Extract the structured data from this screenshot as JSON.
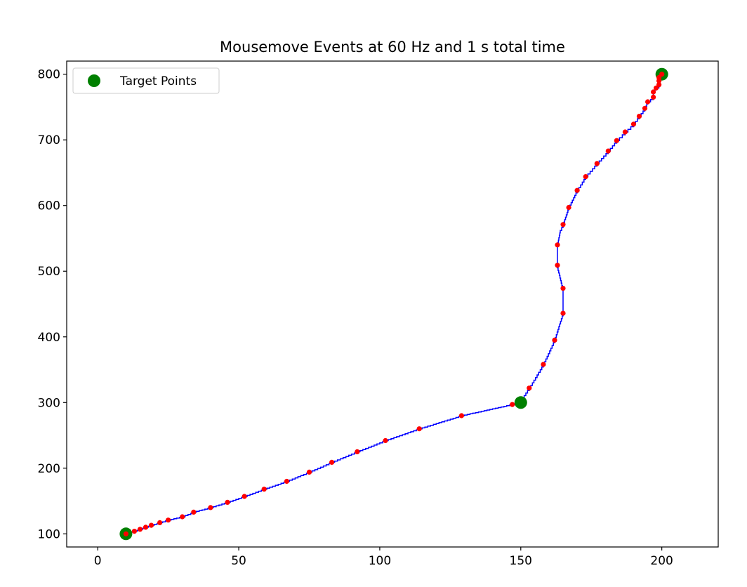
{
  "chart_data": {
    "type": "line",
    "title": "Mousemove Events at 60 Hz and 1 s total time",
    "xlabel": "",
    "ylabel": "",
    "xlim": [
      -11,
      220
    ],
    "ylim": [
      80,
      820
    ],
    "xticks": [
      0,
      50,
      100,
      150,
      200
    ],
    "yticks": [
      100,
      200,
      300,
      400,
      500,
      600,
      700,
      800
    ],
    "grid": false,
    "legend": {
      "position": "upper-left",
      "entries": [
        "Target Points"
      ]
    },
    "colors": {
      "path": "#0000ff",
      "events": "#ff0000",
      "targets": "#008000"
    },
    "series": [
      {
        "kind": "step-line",
        "points": [
          [
            10,
            100
          ],
          [
            13,
            104
          ],
          [
            15,
            107
          ],
          [
            17,
            110
          ],
          [
            19,
            113
          ],
          [
            22,
            117
          ],
          [
            25,
            121
          ],
          [
            30,
            126
          ],
          [
            34,
            133
          ],
          [
            40,
            140
          ],
          [
            46,
            148
          ],
          [
            52,
            157
          ],
          [
            59,
            168
          ],
          [
            67,
            180
          ],
          [
            75,
            194
          ],
          [
            83,
            209
          ],
          [
            92,
            225
          ],
          [
            102,
            242
          ],
          [
            114,
            260
          ],
          [
            129,
            280
          ],
          [
            147,
            297
          ],
          [
            150,
            303
          ],
          [
            153,
            322
          ],
          [
            158,
            358
          ],
          [
            162,
            395
          ],
          [
            165,
            436
          ],
          [
            165,
            474
          ],
          [
            163,
            509
          ],
          [
            163,
            540
          ],
          [
            164,
            562
          ],
          [
            165,
            571
          ],
          [
            167,
            597
          ],
          [
            170,
            623
          ],
          [
            173,
            644
          ],
          [
            177,
            664
          ],
          [
            181,
            683
          ],
          [
            184,
            699
          ],
          [
            187,
            712
          ],
          [
            190,
            724
          ],
          [
            192,
            736
          ],
          [
            194,
            748
          ],
          [
            195,
            758
          ],
          [
            197,
            765
          ],
          [
            197,
            773
          ],
          [
            198,
            779
          ],
          [
            199,
            784
          ],
          [
            199,
            790
          ],
          [
            199,
            795
          ],
          [
            200,
            800
          ]
        ]
      },
      {
        "kind": "events",
        "points": [
          [
            10,
            100
          ],
          [
            13,
            104
          ],
          [
            15,
            107
          ],
          [
            17,
            110
          ],
          [
            19,
            113
          ],
          [
            22,
            117
          ],
          [
            25,
            121
          ],
          [
            30,
            126
          ],
          [
            34,
            133
          ],
          [
            40,
            140
          ],
          [
            46,
            148
          ],
          [
            52,
            157
          ],
          [
            59,
            168
          ],
          [
            67,
            180
          ],
          [
            75,
            194
          ],
          [
            83,
            209
          ],
          [
            92,
            225
          ],
          [
            102,
            242
          ],
          [
            114,
            260
          ],
          [
            129,
            280
          ],
          [
            147,
            297
          ],
          [
            153,
            322
          ],
          [
            158,
            358
          ],
          [
            162,
            395
          ],
          [
            165,
            436
          ],
          [
            165,
            474
          ],
          [
            163,
            509
          ],
          [
            163,
            540
          ],
          [
            165,
            571
          ],
          [
            167,
            597
          ],
          [
            170,
            623
          ],
          [
            173,
            644
          ],
          [
            177,
            664
          ],
          [
            181,
            683
          ],
          [
            184,
            699
          ],
          [
            187,
            712
          ],
          [
            190,
            724
          ],
          [
            192,
            736
          ],
          [
            194,
            748
          ],
          [
            195,
            758
          ],
          [
            197,
            765
          ],
          [
            197,
            773
          ],
          [
            198,
            779
          ],
          [
            199,
            784
          ],
          [
            199,
            790
          ],
          [
            199,
            795
          ],
          [
            200,
            800
          ]
        ]
      },
      {
        "name": "Target Points",
        "kind": "targets",
        "points": [
          [
            10,
            100
          ],
          [
            150,
            300
          ],
          [
            200,
            800
          ]
        ]
      }
    ]
  }
}
